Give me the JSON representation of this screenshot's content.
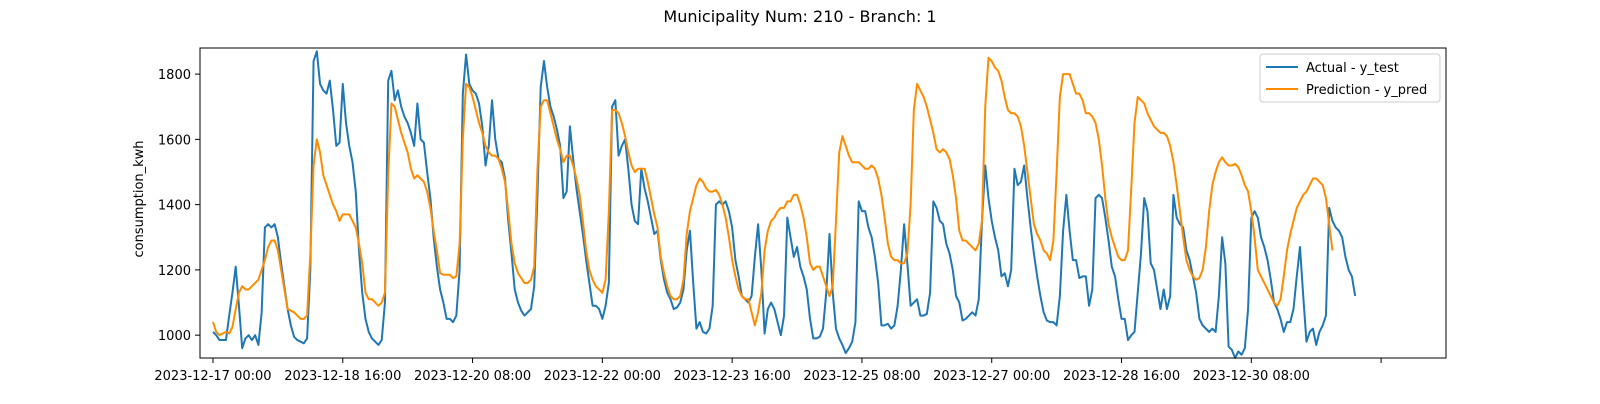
{
  "chart_data": {
    "type": "line",
    "title": "Municipality Num: 210 - Branch: 1",
    "xlabel": "",
    "ylabel": "consumption_kwh",
    "x_start": "2023-12-17 00:00",
    "x_step_hours": 1,
    "x_tick_labels": [
      "2023-12-17 00:00",
      "2023-12-18 16:00",
      "2023-12-20 08:00",
      "2023-12-22 00:00",
      "2023-12-23 16:00",
      "2023-12-25 08:00",
      "2023-12-27 00:00",
      "2023-12-28 16:00",
      "2023-12-30 08:00",
      ""
    ],
    "y_ticks": [
      1000,
      1200,
      1400,
      1600,
      1800
    ],
    "ylim": [
      930,
      1880
    ],
    "xlim": [
      "2023-12-16 20:00",
      "2024-01-01 20:00"
    ],
    "grid": false,
    "legend_position": "top-right",
    "series": [
      {
        "name": "Actual - y_test",
        "color": "#1f77b4",
        "values": [
          1010,
          1000,
          985,
          985,
          985,
          1060,
          1130,
          1210,
          1090,
          960,
          990,
          1000,
          985,
          1000,
          970,
          1070,
          1330,
          1340,
          1330,
          1340,
          1300,
          1220,
          1150,
          1080,
          1030,
          995,
          985,
          980,
          975,
          990,
          1200,
          1840,
          1870,
          1770,
          1750,
          1740,
          1780,
          1690,
          1580,
          1590,
          1770,
          1650,
          1580,
          1530,
          1440,
          1260,
          1130,
          1050,
          1010,
          990,
          980,
          970,
          985,
          1100,
          1780,
          1810,
          1720,
          1750,
          1700,
          1670,
          1650,
          1620,
          1580,
          1710,
          1600,
          1590,
          1500,
          1420,
          1300,
          1210,
          1140,
          1100,
          1050,
          1050,
          1040,
          1060,
          1200,
          1740,
          1860,
          1770,
          1750,
          1740,
          1710,
          1640,
          1520,
          1580,
          1720,
          1600,
          1540,
          1530,
          1480,
          1350,
          1250,
          1140,
          1100,
          1075,
          1060,
          1070,
          1080,
          1150,
          1430,
          1760,
          1840,
          1760,
          1700,
          1670,
          1630,
          1580,
          1420,
          1440,
          1640,
          1540,
          1450,
          1380,
          1310,
          1230,
          1160,
          1090,
          1090,
          1080,
          1050,
          1090,
          1160,
          1700,
          1720,
          1550,
          1580,
          1600,
          1510,
          1400,
          1350,
          1340,
          1510,
          1450,
          1410,
          1360,
          1310,
          1320,
          1230,
          1170,
          1130,
          1110,
          1080,
          1085,
          1100,
          1140,
          1260,
          1320,
          1160,
          1020,
          1040,
          1010,
          1005,
          1020,
          1090,
          1400,
          1410,
          1400,
          1410,
          1380,
          1330,
          1230,
          1180,
          1120,
          1110,
          1100,
          1120,
          1240,
          1340,
          1200,
          1005,
          1080,
          1100,
          1080,
          1040,
          1000,
          1060,
          1360,
          1300,
          1240,
          1270,
          1210,
          1180,
          1140,
          1050,
          990,
          990,
          995,
          1020,
          1130,
          1310,
          1130,
          1020,
          990,
          970,
          945,
          960,
          980,
          1040,
          1410,
          1380,
          1380,
          1330,
          1300,
          1240,
          1160,
          1030,
          1030,
          1035,
          1020,
          1030,
          1090,
          1200,
          1340,
          1220,
          1090,
          1100,
          1110,
          1060,
          1060,
          1065,
          1130,
          1410,
          1390,
          1350,
          1340,
          1280,
          1250,
          1200,
          1120,
          1100,
          1045,
          1050,
          1060,
          1070,
          1060,
          1110,
          1350,
          1520,
          1420,
          1350,
          1300,
          1260,
          1180,
          1190,
          1150,
          1200,
          1510,
          1460,
          1470,
          1520,
          1420,
          1330,
          1250,
          1180,
          1120,
          1070,
          1045,
          1040,
          1040,
          1030,
          1120,
          1320,
          1430,
          1320,
          1230,
          1230,
          1175,
          1180,
          1180,
          1090,
          1140,
          1420,
          1430,
          1420,
          1360,
          1290,
          1210,
          1180,
          1110,
          1050,
          1050,
          985,
          1000,
          1010,
          1130,
          1250,
          1420,
          1380,
          1220,
          1200,
          1140,
          1080,
          1140,
          1080,
          1120,
          1430,
          1360,
          1340,
          1330,
          1260,
          1230,
          1180,
          1130,
          1050,
          1030,
          1020,
          1010,
          1020,
          1010,
          1120,
          1300,
          1220,
          965,
          955,
          930,
          950,
          940,
          960,
          1080,
          1360,
          1380,
          1360,
          1300,
          1270,
          1230,
          1170,
          1100,
          1080,
          1050,
          1010,
          1040,
          1040,
          1080,
          1180,
          1270,
          1120,
          980,
          1010,
          1020,
          970,
          1010,
          1030,
          1060,
          1390,
          1350,
          1330,
          1320,
          1300,
          1240,
          1200,
          1180,
          1120
        ]
      },
      {
        "name": "Prediction - y_pred",
        "color": "#ff8c00",
        "values": [
          1040,
          1010,
          1000,
          1005,
          1010,
          1005,
          1025,
          1080,
          1130,
          1150,
          1140,
          1140,
          1150,
          1160,
          1170,
          1200,
          1230,
          1270,
          1290,
          1290,
          1260,
          1200,
          1140,
          1080,
          1075,
          1070,
          1060,
          1050,
          1050,
          1060,
          1250,
          1520,
          1600,
          1560,
          1490,
          1460,
          1430,
          1400,
          1380,
          1350,
          1370,
          1370,
          1370,
          1350,
          1330,
          1280,
          1220,
          1130,
          1110,
          1110,
          1100,
          1090,
          1100,
          1130,
          1490,
          1710,
          1700,
          1660,
          1620,
          1590,
          1560,
          1510,
          1480,
          1490,
          1480,
          1470,
          1440,
          1390,
          1320,
          1260,
          1190,
          1185,
          1185,
          1185,
          1175,
          1180,
          1280,
          1600,
          1770,
          1760,
          1730,
          1690,
          1650,
          1620,
          1580,
          1560,
          1550,
          1550,
          1540,
          1510,
          1470,
          1380,
          1280,
          1220,
          1190,
          1175,
          1160,
          1160,
          1170,
          1210,
          1510,
          1700,
          1720,
          1720,
          1680,
          1640,
          1600,
          1570,
          1530,
          1550,
          1550,
          1520,
          1480,
          1430,
          1350,
          1260,
          1200,
          1170,
          1150,
          1140,
          1130,
          1170,
          1380,
          1690,
          1690,
          1680,
          1650,
          1610,
          1560,
          1520,
          1500,
          1510,
          1510,
          1510,
          1470,
          1420,
          1370,
          1330,
          1240,
          1190,
          1150,
          1120,
          1110,
          1110,
          1120,
          1170,
          1310,
          1380,
          1420,
          1460,
          1480,
          1470,
          1450,
          1440,
          1440,
          1445,
          1430,
          1400,
          1360,
          1300,
          1230,
          1180,
          1140,
          1120,
          1110,
          1110,
          1070,
          1030,
          1070,
          1130,
          1260,
          1320,
          1350,
          1360,
          1380,
          1390,
          1390,
          1410,
          1410,
          1430,
          1430,
          1400,
          1360,
          1300,
          1220,
          1200,
          1210,
          1210,
          1180,
          1150,
          1120,
          1150,
          1350,
          1560,
          1610,
          1580,
          1550,
          1530,
          1530,
          1530,
          1520,
          1510,
          1510,
          1520,
          1510,
          1480,
          1430,
          1360,
          1280,
          1240,
          1230,
          1230,
          1220,
          1220,
          1250,
          1400,
          1690,
          1770,
          1750,
          1730,
          1700,
          1660,
          1620,
          1570,
          1560,
          1570,
          1560,
          1540,
          1490,
          1420,
          1320,
          1290,
          1290,
          1280,
          1270,
          1260,
          1280,
          1350,
          1700,
          1850,
          1840,
          1820,
          1810,
          1780,
          1730,
          1690,
          1680,
          1680,
          1670,
          1640,
          1580,
          1500,
          1420,
          1340,
          1310,
          1290,
          1260,
          1250,
          1230,
          1290,
          1500,
          1730,
          1800,
          1800,
          1800,
          1770,
          1740,
          1740,
          1720,
          1680,
          1680,
          1670,
          1650,
          1600,
          1520,
          1420,
          1340,
          1300,
          1270,
          1240,
          1230,
          1230,
          1260,
          1450,
          1650,
          1730,
          1720,
          1710,
          1680,
          1660,
          1640,
          1630,
          1620,
          1620,
          1610,
          1580,
          1530,
          1460,
          1380,
          1300,
          1230,
          1200,
          1180,
          1170,
          1175,
          1200,
          1270,
          1380,
          1460,
          1500,
          1530,
          1545,
          1530,
          1520,
          1520,
          1525,
          1515,
          1490,
          1460,
          1440,
          1380,
          1300,
          1200,
          1180,
          1160,
          1140,
          1120,
          1100,
          1090,
          1110,
          1180,
          1260,
          1310,
          1350,
          1390,
          1410,
          1430,
          1440,
          1460,
          1480,
          1480,
          1470,
          1460,
          1420,
          1340,
          1260
        ]
      }
    ]
  }
}
